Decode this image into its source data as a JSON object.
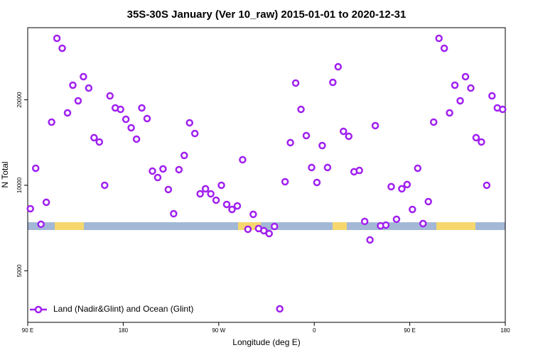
{
  "chart_data": {
    "type": "scatter",
    "title": "35S-30S January (Ver 10_raw)   2015-01-01 to 2020-12-31",
    "xlabel": "Longitude (deg E)",
    "ylabel": "N Total",
    "xlim": [
      90,
      540
    ],
    "xticks": [
      {
        "value": 90,
        "label": "90 E"
      },
      180,
      {
        "value": 270,
        "label": "90 W"
      },
      {
        "value": 360,
        "label": "0"
      },
      {
        "value": 450,
        "label": "90 E"
      },
      {
        "value": 540,
        "label": "180"
      }
    ],
    "ylim": [
      3290,
      35900
    ],
    "ylog": true,
    "yticks": [
      5000,
      10000,
      20000
    ],
    "legend": "lower left",
    "series": [
      {
        "name": "Land (Nadir&Glint) and Ocean (Glint)",
        "color": "#a020f0",
        "x": [
          92.5,
          97.5,
          102.5,
          107.5,
          112.5,
          117.5,
          122.5,
          127.5,
          132.5,
          137.5,
          142.5,
          147.5,
          152.5,
          157.5,
          162.5,
          167.5,
          172.5,
          177.5,
          182.5,
          187.5,
          192.5,
          197.5,
          202.5,
          207.5,
          212.5,
          217.5,
          222.5,
          227.5,
          232.5,
          237.5,
          242.5,
          247.5,
          252.5,
          257.5,
          262.5,
          267.5,
          272.5,
          277.5,
          282.5,
          287.5,
          292.5,
          297.5,
          302.5,
          307.5,
          312.5,
          317.5,
          322.5,
          327.5,
          332.5,
          337.5,
          342.5,
          347.5,
          352.5,
          357.5,
          362.5,
          367.5,
          372.5,
          377.5,
          382.5,
          387.5,
          392.5,
          397.5,
          402.5,
          407.5,
          412.5,
          417.5,
          422.5,
          427.5,
          432.5,
          437.5,
          442.5,
          447.5,
          452.5,
          457.5,
          462.5,
          467.5,
          472.5,
          477.5,
          482.5,
          487.5,
          492.5,
          497.5,
          502.5,
          507.5,
          512.5,
          517.5,
          522.5,
          527.5,
          532.5,
          537.5
        ],
        "values": [
          8270,
          11480,
          7290,
          8710,
          16690,
          32930,
          30380,
          17990,
          22520,
          19840,
          24130,
          22000,
          14710,
          14210,
          10000,
          20650,
          18730,
          18510,
          17080,
          15940,
          14540,
          18730,
          17180,
          11220,
          10650,
          11420,
          9660,
          7940,
          11350,
          12740,
          16600,
          15220,
          9330,
          9720,
          9330,
          8860,
          10000,
          8560,
          8220,
          8460,
          12300,
          7000,
          7900,
          7040,
          6920,
          6760,
          7160,
          3670,
          10290,
          14130,
          22910,
          18510,
          14960,
          11550,
          10230,
          13800,
          11550,
          23040,
          26150,
          15490,
          14880,
          11160,
          11280,
          7460,
          6420,
          16220,
          7200,
          7240,
          9890,
          7590,
          9720,
          10060,
          8220,
          11480,
          7330,
          8760,
          16690,
          32930,
          30380,
          17990,
          22520,
          19840,
          24130,
          22000,
          14710,
          14210,
          10000,
          20650,
          18730,
          18510
        ]
      }
    ]
  }
}
